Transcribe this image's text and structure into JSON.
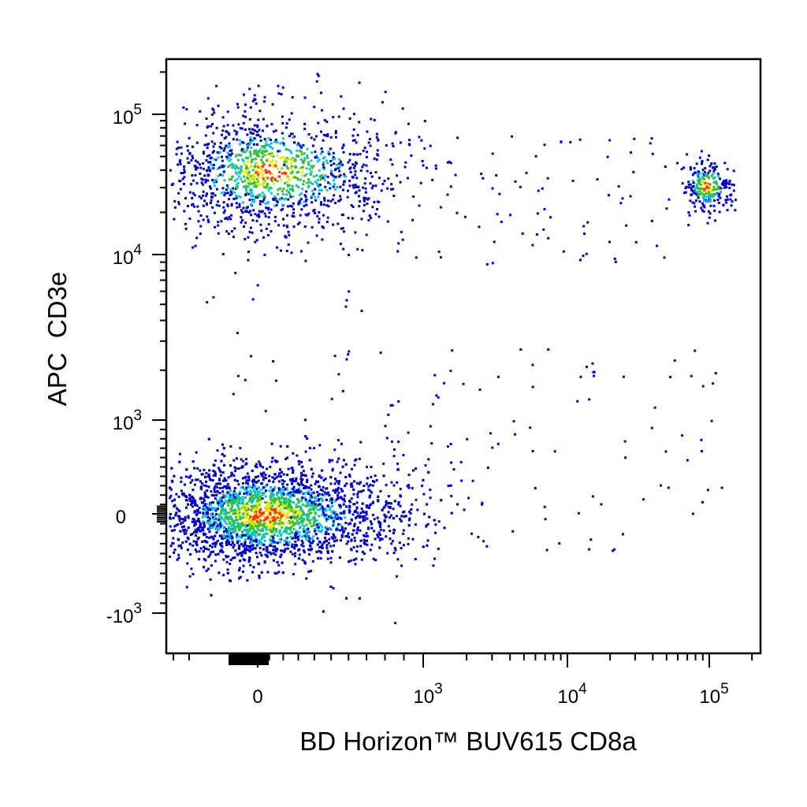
{
  "chart_data": {
    "type": "scatter",
    "subtype": "flow-cytometry-dot-plot (density colored)",
    "xlabel": "BD Horizon™ BUV615 CD8a",
    "ylabel": "APC  CD3e",
    "x_scale": "biexponential",
    "y_scale": "biexponential",
    "x_tick_labels": [
      {
        "base": "0",
        "exp": ""
      },
      {
        "base": "10",
        "exp": "3"
      },
      {
        "base": "10",
        "exp": "4"
      },
      {
        "base": "10",
        "exp": "5"
      }
    ],
    "y_tick_labels": [
      {
        "base": "-10",
        "exp": "3"
      },
      {
        "base": "0",
        "exp": ""
      },
      {
        "base": "10",
        "exp": "3"
      },
      {
        "base": "10",
        "exp": "4"
      },
      {
        "base": "10",
        "exp": "5"
      }
    ],
    "xlim": [
      -300,
      200000
    ],
    "ylim": [
      -2000,
      220000
    ],
    "grid": false,
    "legend": "none",
    "density_colors": [
      "#0000cc",
      "#00c8e0",
      "#30c030",
      "#e8e800",
      "#ff3000"
    ],
    "populations": [
      {
        "x_center": 80,
        "y_center": 40000,
        "x_spread_decades": 0.35,
        "y_spread_decades": 0.18,
        "relative_size": 0.24
      },
      {
        "x_center": 95000,
        "y_center": 31000,
        "x_spread_decades": 0.08,
        "y_spread_decades": 0.08,
        "relative_size": 0.05
      },
      {
        "x_center": 40,
        "y_center": 0,
        "x_spread_decades": 0.35,
        "y_spread_decades": 0.22,
        "relative_size": 0.66
      }
    ]
  }
}
